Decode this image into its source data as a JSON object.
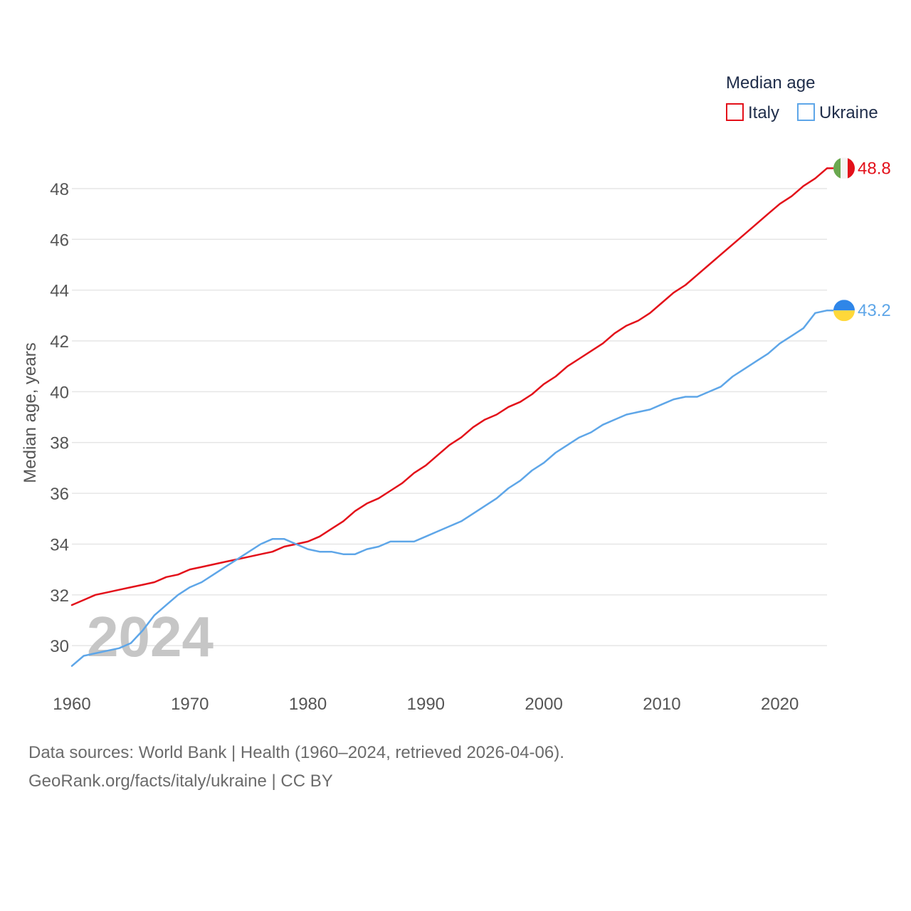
{
  "chart_data": {
    "type": "line",
    "legend_title": "Median age",
    "ylabel": "Median age, years",
    "xlabel": "",
    "year_display": "2024",
    "xlim": [
      1960,
      2024
    ],
    "ylim": [
      28.8,
      49.4
    ],
    "x_ticks": [
      1960,
      1970,
      1980,
      1990,
      2000,
      2010,
      2020
    ],
    "y_ticks": [
      30,
      32,
      34,
      36,
      38,
      40,
      42,
      44,
      46,
      48
    ],
    "legend_position": "top-right",
    "grid": true,
    "x": [
      1960,
      1961,
      1962,
      1963,
      1964,
      1965,
      1966,
      1967,
      1968,
      1969,
      1970,
      1971,
      1972,
      1973,
      1974,
      1975,
      1976,
      1977,
      1978,
      1979,
      1980,
      1981,
      1982,
      1983,
      1984,
      1985,
      1986,
      1987,
      1988,
      1989,
      1990,
      1991,
      1992,
      1993,
      1994,
      1995,
      1996,
      1997,
      1998,
      1999,
      2000,
      2001,
      2002,
      2003,
      2004,
      2005,
      2006,
      2007,
      2008,
      2009,
      2010,
      2011,
      2012,
      2013,
      2014,
      2015,
      2016,
      2017,
      2018,
      2019,
      2020,
      2021,
      2022,
      2023,
      2024
    ],
    "series": [
      {
        "name": "Italy",
        "color": "#e3101a",
        "end_label": "48.8",
        "flag": "italy-flag",
        "values": [
          31.6,
          31.8,
          32.0,
          32.1,
          32.2,
          32.3,
          32.4,
          32.5,
          32.7,
          32.8,
          33.0,
          33.1,
          33.2,
          33.3,
          33.4,
          33.5,
          33.6,
          33.7,
          33.9,
          34.0,
          34.1,
          34.3,
          34.6,
          34.9,
          35.3,
          35.6,
          35.8,
          36.1,
          36.4,
          36.8,
          37.1,
          37.5,
          37.9,
          38.2,
          38.6,
          38.9,
          39.1,
          39.4,
          39.6,
          39.9,
          40.3,
          40.6,
          41.0,
          41.3,
          41.6,
          41.9,
          42.3,
          42.6,
          42.8,
          43.1,
          43.5,
          43.9,
          44.2,
          44.6,
          45.0,
          45.4,
          45.8,
          46.2,
          46.6,
          47.0,
          47.4,
          47.7,
          48.1,
          48.4,
          48.8
        ]
      },
      {
        "name": "Ukraine",
        "color": "#5ea6e8",
        "end_label": "43.2",
        "flag": "ukraine-flag",
        "values": [
          29.2,
          29.6,
          29.7,
          29.8,
          29.9,
          30.1,
          30.6,
          31.2,
          31.6,
          32.0,
          32.3,
          32.5,
          32.8,
          33.1,
          33.4,
          33.7,
          34.0,
          34.2,
          34.2,
          34.0,
          33.8,
          33.7,
          33.7,
          33.6,
          33.6,
          33.8,
          33.9,
          34.1,
          34.1,
          34.1,
          34.3,
          34.5,
          34.7,
          34.9,
          35.2,
          35.5,
          35.8,
          36.2,
          36.5,
          36.9,
          37.2,
          37.6,
          37.9,
          38.2,
          38.4,
          38.7,
          38.9,
          39.1,
          39.2,
          39.3,
          39.5,
          39.7,
          39.8,
          39.8,
          40.0,
          40.2,
          40.6,
          40.9,
          41.2,
          41.5,
          41.9,
          42.2,
          42.5,
          43.1,
          43.2
        ]
      }
    ]
  },
  "footer": {
    "line1": "Data sources: World Bank | Health (1960–2024, retrieved 2026-04-06).",
    "line2": "GeoRank.org/facts/italy/ukraine | CC BY"
  }
}
